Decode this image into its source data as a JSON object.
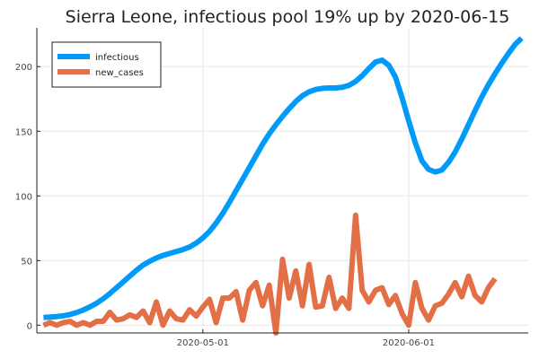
{
  "chart_data": {
    "type": "line",
    "title": "Sierra Leone, infectious pool 19% up by 2020-06-15",
    "xlabel": "",
    "ylabel": "",
    "x_start": "2020-04-07",
    "x_end": "2020-06-15",
    "xlim": [
      "2020-04-06",
      "2020-06-19"
    ],
    "ylim": [
      -6,
      230
    ],
    "yticks": [
      0,
      50,
      100,
      150,
      200
    ],
    "ytick_labels": [
      "0",
      "50",
      "100",
      "150",
      "200"
    ],
    "xticks": [
      "2020-05-01",
      "2020-06-01"
    ],
    "xtick_labels": [
      "2020-05-01",
      "2020-06-01"
    ],
    "grid": true,
    "legend_position": "top-left",
    "series": [
      {
        "name": "infectious",
        "color": "#009af9",
        "values": [
          6,
          6.3,
          6.7,
          7.3,
          8.3,
          9.8,
          11.8,
          14.2,
          17,
          20.5,
          24.5,
          29,
          33.5,
          38,
          42.5,
          46.5,
          49.5,
          52,
          54,
          55.5,
          57,
          58.5,
          60.5,
          63.5,
          67.5,
          72.5,
          79,
          86.5,
          95,
          104,
          113,
          122,
          131,
          140,
          148,
          155,
          161.5,
          167.5,
          173,
          177.5,
          180.5,
          182.3,
          183.2,
          183.5,
          183.5,
          184,
          185.5,
          188.5,
          193,
          198.5,
          203.5,
          205,
          201,
          192,
          176,
          158,
          141,
          127,
          120.5,
          118.5,
          120,
          126,
          134,
          144,
          155,
          166,
          176.5,
          186,
          194.5,
          202.5,
          210,
          217,
          222
        ]
      },
      {
        "name": "new_cases",
        "color": "#e26f46",
        "values": [
          0,
          2,
          0,
          2,
          3,
          0,
          2,
          0,
          3,
          3,
          10,
          4,
          5,
          8,
          6,
          11,
          2,
          18,
          0,
          11,
          5,
          4,
          12,
          7,
          14,
          20,
          2,
          21,
          21,
          26,
          4,
          27,
          33,
          15,
          31,
          -6,
          51,
          21,
          42,
          15,
          47,
          14,
          15,
          37,
          13,
          21,
          13,
          85,
          27,
          18,
          27,
          29,
          16,
          23,
          9,
          0,
          33,
          13,
          4,
          15,
          17,
          24,
          33,
          22,
          38,
          23,
          18,
          29,
          36
        ]
      }
    ]
  }
}
